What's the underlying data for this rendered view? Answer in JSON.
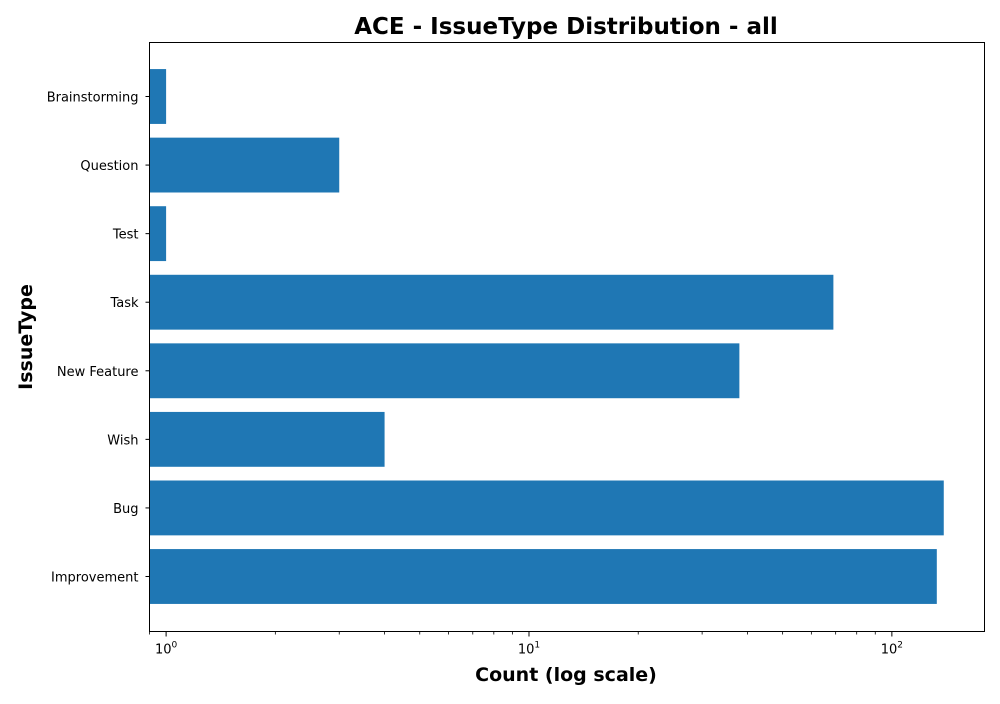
{
  "chart_data": {
    "type": "bar",
    "orientation": "horizontal",
    "title": "ACE - IssueType Distribution - all",
    "xlabel": "Count (log scale)",
    "ylabel": "IssueType",
    "x_scale": "log",
    "xlim": [
      0.9,
      180
    ],
    "x_ticks": [
      {
        "value": 1,
        "base": "10",
        "exp": "0"
      },
      {
        "value": 10,
        "base": "10",
        "exp": "1"
      },
      {
        "value": 100,
        "base": "10",
        "exp": "2"
      }
    ],
    "categories": [
      "Improvement",
      "Bug",
      "Wish",
      "New Feature",
      "Task",
      "Test",
      "Question",
      "Brainstorming"
    ],
    "values": [
      133,
      139,
      4,
      38,
      69,
      1,
      3,
      1
    ],
    "bar_color": "#1f77b4",
    "grid": false,
    "legend": "none"
  }
}
